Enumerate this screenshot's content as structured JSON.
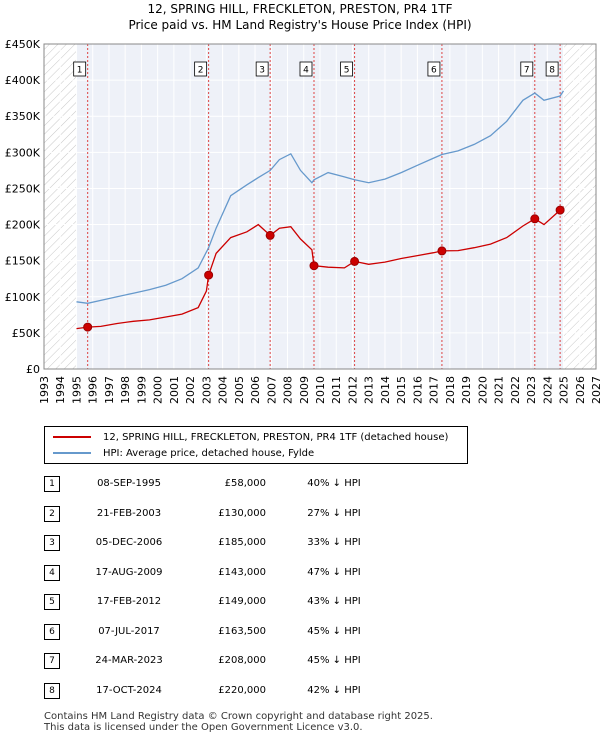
{
  "chart_data": {
    "type": "line",
    "title": "12, SPRING HILL, FRECKLETON, PRESTON, PR4 1TF",
    "subtitle": "Price paid vs. HM Land Registry's House Price Index (HPI)",
    "xlim": [
      1993,
      2027
    ],
    "ylim": [
      0,
      450000
    ],
    "x_ticks": [
      1993,
      1994,
      1995,
      1996,
      1997,
      1998,
      1999,
      2000,
      2001,
      2002,
      2003,
      2004,
      2005,
      2006,
      2007,
      2008,
      2009,
      2010,
      2011,
      2012,
      2013,
      2014,
      2015,
      2016,
      2017,
      2018,
      2019,
      2020,
      2021,
      2022,
      2023,
      2024,
      2025,
      2026,
      2027
    ],
    "y_ticks": [
      {
        "value": 0,
        "label": "£0"
      },
      {
        "value": 50000,
        "label": "£50K"
      },
      {
        "value": 100000,
        "label": "£100K"
      },
      {
        "value": 150000,
        "label": "£150K"
      },
      {
        "value": 200000,
        "label": "£200K"
      },
      {
        "value": 250000,
        "label": "£250K"
      },
      {
        "value": 300000,
        "label": "£300K"
      },
      {
        "value": 350000,
        "label": "£350K"
      },
      {
        "value": 400000,
        "label": "£400K"
      },
      {
        "value": 450000,
        "label": "£450K"
      }
    ],
    "data_start": 1995.0,
    "data_end": 2025.0,
    "series": [
      {
        "name": "12, SPRING HILL, FRECKLETON, PRESTON, PR4 1TF (detached house)",
        "color": "#cc0000",
        "points": [
          [
            1995.0,
            56000
          ],
          [
            1995.69,
            58000
          ],
          [
            1996.5,
            59000
          ],
          [
            1997.5,
            63000
          ],
          [
            1998.5,
            66000
          ],
          [
            1999.5,
            68000
          ],
          [
            2000.5,
            72000
          ],
          [
            2001.5,
            76000
          ],
          [
            2002.5,
            85000
          ],
          [
            2003.0,
            108000
          ],
          [
            2003.14,
            130000
          ],
          [
            2003.6,
            160000
          ],
          [
            2004.5,
            182000
          ],
          [
            2005.5,
            190000
          ],
          [
            2006.2,
            200000
          ],
          [
            2006.93,
            185000
          ],
          [
            2007.5,
            195000
          ],
          [
            2008.2,
            197000
          ],
          [
            2008.8,
            180000
          ],
          [
            2009.5,
            165000
          ],
          [
            2009.63,
            143000
          ],
          [
            2010.5,
            141000
          ],
          [
            2011.5,
            140000
          ],
          [
            2012.13,
            149000
          ],
          [
            2013.0,
            145000
          ],
          [
            2014.0,
            148000
          ],
          [
            2015.0,
            153000
          ],
          [
            2016.0,
            157000
          ],
          [
            2017.0,
            161000
          ],
          [
            2017.51,
            163500
          ],
          [
            2018.5,
            164000
          ],
          [
            2019.5,
            168000
          ],
          [
            2020.5,
            173000
          ],
          [
            2021.5,
            182000
          ],
          [
            2022.5,
            198000
          ],
          [
            2023.23,
            208000
          ],
          [
            2023.8,
            200000
          ],
          [
            2024.79,
            220000
          ],
          [
            2025.0,
            225000
          ]
        ]
      },
      {
        "name": "HPI: Average price, detached house, Fylde",
        "color": "#6699cc",
        "points": [
          [
            1995.0,
            93000
          ],
          [
            1995.69,
            91000
          ],
          [
            1996.5,
            95000
          ],
          [
            1997.5,
            100000
          ],
          [
            1998.5,
            105000
          ],
          [
            1999.5,
            110000
          ],
          [
            2000.5,
            116000
          ],
          [
            2001.5,
            125000
          ],
          [
            2002.5,
            140000
          ],
          [
            2003.14,
            168000
          ],
          [
            2003.6,
            195000
          ],
          [
            2004.5,
            240000
          ],
          [
            2005.5,
            255000
          ],
          [
            2006.2,
            265000
          ],
          [
            2006.93,
            275000
          ],
          [
            2007.5,
            290000
          ],
          [
            2008.2,
            298000
          ],
          [
            2008.8,
            275000
          ],
          [
            2009.5,
            258000
          ],
          [
            2009.63,
            262000
          ],
          [
            2010.5,
            272000
          ],
          [
            2011.5,
            266000
          ],
          [
            2012.13,
            262000
          ],
          [
            2013.0,
            258000
          ],
          [
            2014.0,
            263000
          ],
          [
            2015.0,
            272000
          ],
          [
            2016.0,
            282000
          ],
          [
            2017.0,
            292000
          ],
          [
            2017.51,
            297000
          ],
          [
            2018.5,
            302000
          ],
          [
            2019.5,
            311000
          ],
          [
            2020.5,
            323000
          ],
          [
            2021.5,
            343000
          ],
          [
            2022.5,
            372000
          ],
          [
            2023.23,
            382000
          ],
          [
            2023.8,
            372000
          ],
          [
            2024.79,
            378000
          ],
          [
            2025.0,
            385000
          ]
        ]
      }
    ],
    "sales": [
      {
        "n": "1",
        "x": 1995.69,
        "price": 58000,
        "date": "08-SEP-1995",
        "price_label": "£58,000",
        "hpi": "40% ↓ HPI"
      },
      {
        "n": "2",
        "x": 2003.14,
        "price": 130000,
        "date": "21-FEB-2003",
        "price_label": "£130,000",
        "hpi": "27% ↓ HPI"
      },
      {
        "n": "3",
        "x": 2006.93,
        "price": 185000,
        "date": "05-DEC-2006",
        "price_label": "£185,000",
        "hpi": "33% ↓ HPI"
      },
      {
        "n": "4",
        "x": 2009.63,
        "price": 143000,
        "date": "17-AUG-2009",
        "price_label": "£143,000",
        "hpi": "47% ↓ HPI"
      },
      {
        "n": "5",
        "x": 2012.13,
        "price": 149000,
        "date": "17-FEB-2012",
        "price_label": "£149,000",
        "hpi": "43% ↓ HPI"
      },
      {
        "n": "6",
        "x": 2017.51,
        "price": 163500,
        "date": "07-JUL-2017",
        "price_label": "£163,500",
        "hpi": "45% ↓ HPI"
      },
      {
        "n": "7",
        "x": 2023.23,
        "price": 208000,
        "date": "24-MAR-2023",
        "price_label": "£208,000",
        "hpi": "45% ↓ HPI"
      },
      {
        "n": "8",
        "x": 2024.79,
        "price": 220000,
        "date": "17-OCT-2024",
        "price_label": "£220,000",
        "hpi": "42% ↓ HPI"
      }
    ]
  },
  "footer": {
    "line1": "Contains HM Land Registry data © Crown copyright and database right 2025.",
    "line2": "This data is licensed under the Open Government Licence v3.0."
  }
}
